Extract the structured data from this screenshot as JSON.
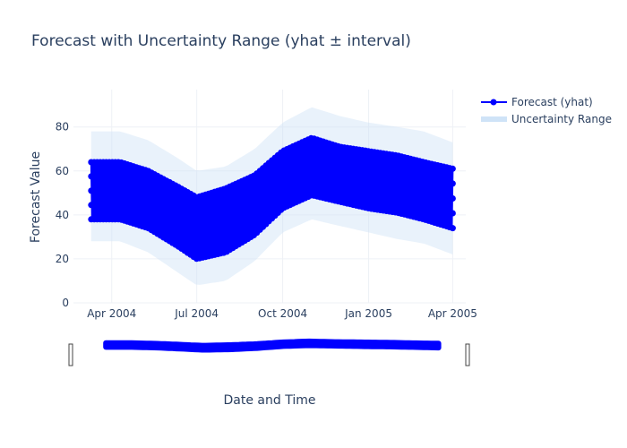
{
  "chart_data": {
    "type": "line",
    "title": "Forecast with Uncertainty Range (yhat ± interval)",
    "xlabel": "Date and Time",
    "ylabel": "Forecast Value",
    "x_range": [
      "2004-02-20",
      "2005-04-15"
    ],
    "ylim": [
      0,
      97
    ],
    "x_ticks": [
      {
        "date": "2004-04-01",
        "label": "Apr 2004"
      },
      {
        "date": "2004-07-01",
        "label": "Jul 2004"
      },
      {
        "date": "2004-10-01",
        "label": "Oct 2004"
      },
      {
        "date": "2005-01-01",
        "label": "Jan 2005"
      },
      {
        "date": "2005-04-01",
        "label": "Apr 2005"
      }
    ],
    "y_ticks": [
      0,
      20,
      40,
      60,
      80
    ],
    "grid": true,
    "legend_position": "top-right",
    "series": [
      {
        "name": "Forecast (yhat)",
        "style": "lines+markers",
        "color": "#0000ff",
        "x": [
          "2004-03-10",
          "2004-04-10",
          "2004-05-10",
          "2004-06-10",
          "2004-07-01",
          "2004-08-01",
          "2004-09-01",
          "2004-10-01",
          "2004-11-01",
          "2004-12-01",
          "2005-01-01",
          "2005-02-01",
          "2005-03-01",
          "2005-04-01"
        ],
        "upper": [
          64,
          64,
          60,
          53,
          48,
          52,
          58,
          69,
          75,
          71,
          69,
          67,
          64,
          61
        ],
        "lower": [
          38,
          38,
          34,
          26,
          20,
          23,
          31,
          43,
          49,
          46,
          43,
          41,
          38,
          34
        ]
      },
      {
        "name": "Uncertainty Range",
        "style": "fill",
        "color": "#cfe3f7",
        "x": [
          "2004-03-10",
          "2004-04-10",
          "2004-05-10",
          "2004-06-10",
          "2004-07-01",
          "2004-08-01",
          "2004-09-01",
          "2004-10-01",
          "2004-11-01",
          "2004-12-01",
          "2005-01-01",
          "2005-02-01",
          "2005-03-01",
          "2005-04-01"
        ],
        "upper": [
          78,
          78,
          74,
          66,
          60,
          62,
          70,
          82,
          89,
          85,
          82,
          80,
          78,
          73
        ],
        "lower": [
          28,
          28,
          23,
          14,
          8,
          10,
          19,
          32,
          38,
          35,
          32,
          29,
          27,
          22
        ]
      }
    ]
  }
}
